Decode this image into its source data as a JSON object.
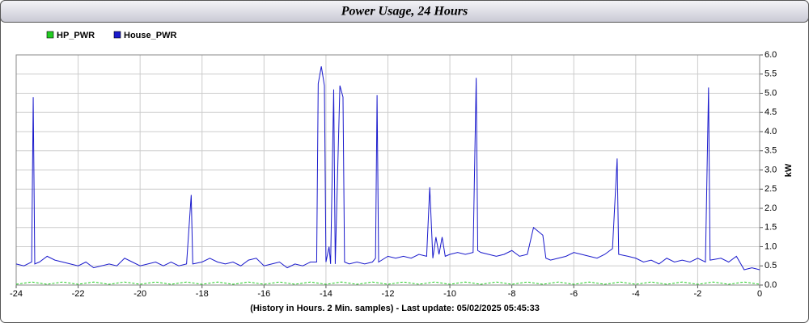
{
  "chart_data": {
    "type": "line",
    "title": "Power Usage, 24 Hours",
    "x_label": "(History in Hours. 2 Min. samples) - Last update: 05/02/2025 05:45:33",
    "y_label": "kW",
    "grid": true,
    "y_axis_side": "right",
    "xlim": [
      -24,
      0
    ],
    "xticks": [
      -24,
      -22,
      -20,
      -18,
      -16,
      -14,
      -12,
      -10,
      -8,
      -6,
      -4,
      -2,
      0
    ],
    "ylim": [
      0,
      6
    ],
    "yticks": [
      {
        "value": 0,
        "label": "0.0"
      },
      0.5,
      {
        "value": 1,
        "label": "1.0"
      },
      1.5,
      {
        "value": 2,
        "label": "2.0"
      },
      2.5,
      {
        "value": 3,
        "label": "3.0"
      },
      3.5,
      {
        "value": 4,
        "label": "4.0"
      },
      4.5,
      {
        "value": 5,
        "label": "5.0"
      },
      5.5,
      {
        "value": 6,
        "label": "6.0"
      }
    ],
    "series": [
      {
        "name": "HP_PWR",
        "color": "#22cc22",
        "x": [
          -24,
          -23.5,
          -23,
          -22.5,
          -22,
          -21.5,
          -21,
          -20.5,
          -20,
          -19.5,
          -19,
          -18.5,
          -18,
          -17.5,
          -17,
          -16.5,
          -16,
          -15.5,
          -15,
          -14.5,
          -14,
          -13.5,
          -13,
          -12.5,
          -12,
          -11.5,
          -11,
          -10.5,
          -10,
          -9.5,
          -9,
          -8.5,
          -8,
          -7.5,
          -7,
          -6.5,
          -6,
          -5.5,
          -5,
          -4.5,
          -4,
          -3.5,
          -3,
          -2.5,
          -2,
          -1.5,
          -1,
          -0.5,
          0
        ],
        "values": [
          0.02,
          0.08,
          0.02,
          0.08,
          0.02,
          0.08,
          0.02,
          0.08,
          0.02,
          0.08,
          0.02,
          0.08,
          0.02,
          0.08,
          0.02,
          0.08,
          0.02,
          0.08,
          0.02,
          0.08,
          0.02,
          0.08,
          0.02,
          0.08,
          0.02,
          0.08,
          0.02,
          0.08,
          0.02,
          0.08,
          0.02,
          0.08,
          0.02,
          0.08,
          0.02,
          0.08,
          0.02,
          0.08,
          0.02,
          0.08,
          0.02,
          0.08,
          0.02,
          0.08,
          0.02,
          0.08,
          0.02,
          0.08,
          0.02
        ]
      },
      {
        "name": "House_PWR",
        "color": "#1a1acc",
        "x": [
          -24,
          -23.75,
          -23.5,
          -23.45,
          -23.4,
          -23.25,
          -23,
          -22.75,
          -22.5,
          -22.25,
          -22,
          -21.75,
          -21.5,
          -21.25,
          -21,
          -20.75,
          -20.5,
          -20.25,
          -20,
          -19.75,
          -19.5,
          -19.25,
          -19,
          -18.75,
          -18.5,
          -18.35,
          -18.3,
          -18,
          -17.75,
          -17.5,
          -17.25,
          -17,
          -16.75,
          -16.5,
          -16.25,
          -16,
          -15.75,
          -15.5,
          -15.25,
          -15,
          -14.75,
          -14.5,
          -14.3,
          -14.25,
          -14.15,
          -14.05,
          -14,
          -13.9,
          -13.85,
          -13.75,
          -13.7,
          -13.55,
          -13.45,
          -13.4,
          -13.25,
          -13,
          -12.75,
          -12.5,
          -12.4,
          -12.35,
          -12.3,
          -12,
          -11.75,
          -11.5,
          -11.25,
          -11,
          -10.75,
          -10.65,
          -10.55,
          -10.45,
          -10.35,
          -10.25,
          -10.15,
          -10,
          -9.75,
          -9.5,
          -9.25,
          -9.15,
          -9.1,
          -9,
          -8.75,
          -8.5,
          -8.25,
          -8,
          -7.75,
          -7.5,
          -7.3,
          -7,
          -6.9,
          -6.75,
          -6.5,
          -6.25,
          -6,
          -5.75,
          -5.5,
          -5.25,
          -5,
          -4.75,
          -4.6,
          -4.55,
          -4.25,
          -4,
          -3.75,
          -3.5,
          -3.25,
          -3,
          -2.75,
          -2.5,
          -2.25,
          -2,
          -1.75,
          -1.65,
          -1.6,
          -1.25,
          -1,
          -0.75,
          -0.5,
          -0.25,
          0
        ],
        "values": [
          0.55,
          0.5,
          0.6,
          4.9,
          0.55,
          0.6,
          0.75,
          0.65,
          0.6,
          0.55,
          0.5,
          0.6,
          0.45,
          0.5,
          0.55,
          0.5,
          0.7,
          0.6,
          0.5,
          0.55,
          0.6,
          0.5,
          0.6,
          0.5,
          0.55,
          2.35,
          0.55,
          0.6,
          0.7,
          0.6,
          0.55,
          0.6,
          0.5,
          0.65,
          0.7,
          0.5,
          0.55,
          0.6,
          0.45,
          0.55,
          0.5,
          0.6,
          0.6,
          5.25,
          5.7,
          5.2,
          0.6,
          1.0,
          0.55,
          5.1,
          0.55,
          5.2,
          4.9,
          0.6,
          0.55,
          0.6,
          0.55,
          0.6,
          0.7,
          4.95,
          0.6,
          0.75,
          0.7,
          0.75,
          0.7,
          0.8,
          0.75,
          2.55,
          0.7,
          1.25,
          0.8,
          1.25,
          0.75,
          0.8,
          0.85,
          0.8,
          0.85,
          5.4,
          0.9,
          0.85,
          0.8,
          0.75,
          0.8,
          0.9,
          0.75,
          0.8,
          1.5,
          1.3,
          0.7,
          0.65,
          0.7,
          0.75,
          0.85,
          0.8,
          0.75,
          0.7,
          0.8,
          0.95,
          3.3,
          0.8,
          0.75,
          0.7,
          0.6,
          0.65,
          0.55,
          0.7,
          0.6,
          0.65,
          0.6,
          0.7,
          0.6,
          5.15,
          0.65,
          0.7,
          0.6,
          0.75,
          0.4,
          0.45,
          0.4
        ]
      }
    ]
  }
}
